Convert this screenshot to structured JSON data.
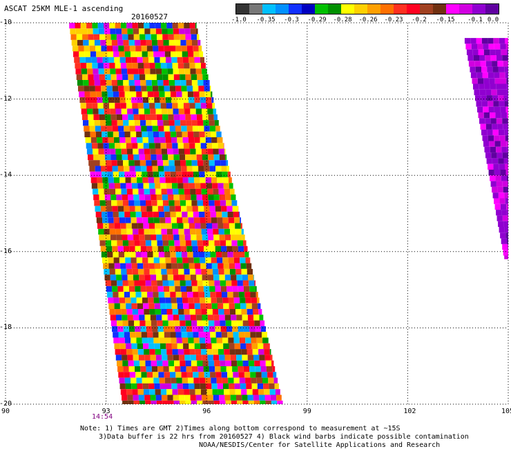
{
  "header": {
    "title": "ASCAT 25KM MLE-1 ascending",
    "date": "20160527"
  },
  "colorbar": {
    "labels": [
      "-1.0",
      "-0.35",
      "-0.3",
      "-0.29",
      "-0.28",
      "-0.26",
      "-0.23",
      "-0.2",
      "-0.15",
      "-0.1",
      "0.0"
    ],
    "colors": [
      "#333333",
      "#777777",
      "#00c0ff",
      "#0090ff",
      "#1030ff",
      "#0000c0",
      "#00c000",
      "#009000",
      "#ffff00",
      "#ffd000",
      "#ffa000",
      "#ff7000",
      "#ff3020",
      "#ff0020",
      "#a04020",
      "#703010",
      "#ff00ff",
      "#d000e0",
      "#9000d0",
      "#6000a0"
    ]
  },
  "axes": {
    "x_ticks": [
      "90",
      "93",
      "96",
      "99",
      "102",
      "105"
    ],
    "y_ticks": [
      "-10",
      "-12",
      "-14",
      "-16",
      "-18",
      "-20"
    ],
    "time_label": "14:54",
    "time_color": "#800080"
  },
  "map_data": {
    "lon_range": [
      90,
      105
    ],
    "lat_range": [
      -20,
      -10
    ],
    "swaths": [
      {
        "name": "main",
        "lat_top": -10,
        "lon_left_top": 91.9,
        "lon_right_top": 95.7,
        "lat_bottom": -20,
        "lon_left_bottom": 93.5,
        "lon_right_bottom": 98.3,
        "dominant": "mixed"
      },
      {
        "name": "east",
        "lat_top": -10.4,
        "lon_left_top": 103.7,
        "lon_right_top": 105,
        "lat_bottom": -16.2,
        "lon_left_bottom": 104.9,
        "lon_right_bottom": 105,
        "dominant": "purple"
      }
    ]
  },
  "notes": {
    "line1": "Note: 1) Times are GMT 2)Times along bottom correspond to measurement at ~15S",
    "line2": "3)Data buffer is 22 hrs from 20160527 4) Black wind barbs indicate possible contamination",
    "line3": "NOAA/NESDIS/Center for Satellite Applications and Research"
  }
}
